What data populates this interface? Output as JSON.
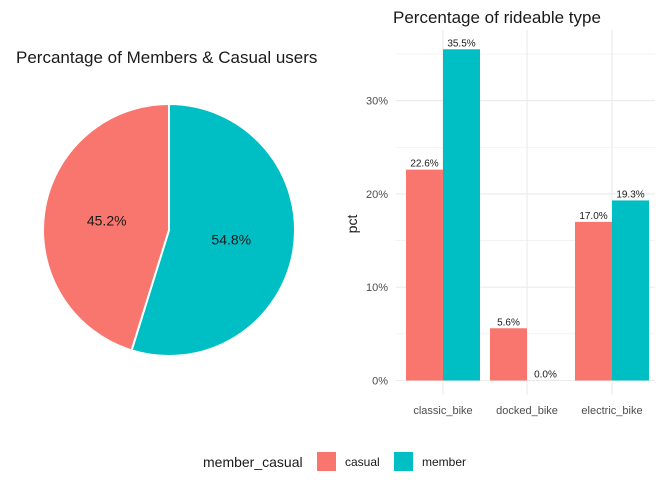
{
  "colors": {
    "casual": "#F8766D",
    "member": "#00BFC4",
    "grid": "#EBEBEB"
  },
  "legend": {
    "title": "member_casual",
    "items": [
      {
        "label": "casual",
        "color": "#F8766D"
      },
      {
        "label": "member",
        "color": "#00BFC4"
      }
    ]
  },
  "chart_data": [
    {
      "type": "pie",
      "title": "Percantage of Members & Casual users",
      "categories": [
        "casual",
        "member"
      ],
      "values": [
        45.2,
        54.8
      ],
      "labels": [
        "45.2%",
        "54.8%"
      ],
      "start": "12 o'clock",
      "direction": "clockwise, member first"
    },
    {
      "type": "bar",
      "title": "Percentage of rideable type",
      "categories": [
        "classic_bike",
        "docked_bike",
        "electric_bike"
      ],
      "series": [
        {
          "name": "casual",
          "values": [
            22.6,
            5.6,
            17.0
          ],
          "labels": [
            "22.6%",
            "5.6%",
            "17.0%"
          ]
        },
        {
          "name": "member",
          "values": [
            35.5,
            0.0,
            19.3
          ],
          "labels": [
            "35.5%",
            "0.0%",
            "19.3%"
          ]
        }
      ],
      "xlabel": "",
      "ylabel": "pct",
      "yticks": [
        0,
        10,
        20,
        30
      ],
      "ytick_labels": [
        "0%",
        "10%",
        "20%",
        "30%"
      ],
      "ylim": [
        0,
        37.3
      ],
      "grid": true,
      "legend_position": "bottom"
    }
  ]
}
